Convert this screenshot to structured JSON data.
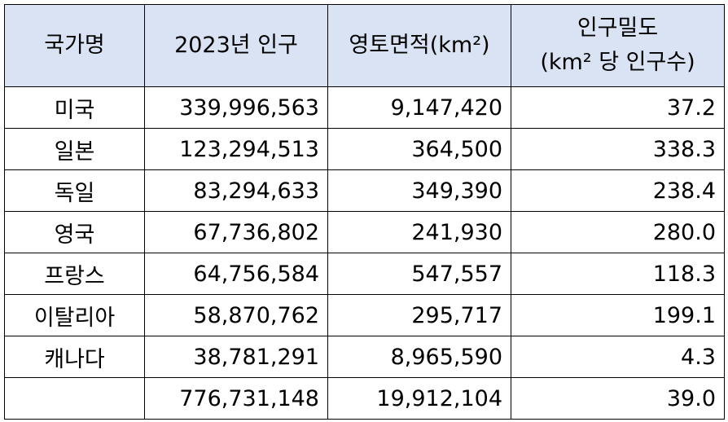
{
  "table": {
    "header": [
      [
        "국가명"
      ],
      [
        "2023년 인구"
      ],
      [
        "영토면적(km²)"
      ],
      [
        "인구밀도",
        "(km² 당 인구수)"
      ]
    ],
    "rows": [
      [
        "미국",
        "339,996,563",
        "9,147,420",
        "37.2"
      ],
      [
        "일본",
        "123,294,513",
        "364,500",
        "338.3"
      ],
      [
        "독일",
        "83,294,633",
        "349,390",
        "238.4"
      ],
      [
        "영국",
        "67,736,802",
        "241,930",
        "280.0"
      ],
      [
        "프랑스",
        "64,756,584",
        "547,557",
        "118.3"
      ],
      [
        "이탈리아",
        "58,870,762",
        "295,717",
        "199.1"
      ],
      [
        "캐나다",
        "38,781,291",
        "8,965,590",
        "4.3"
      ]
    ],
    "total": [
      "776,731,148",
      "19,912,104",
      "39.0"
    ]
  }
}
